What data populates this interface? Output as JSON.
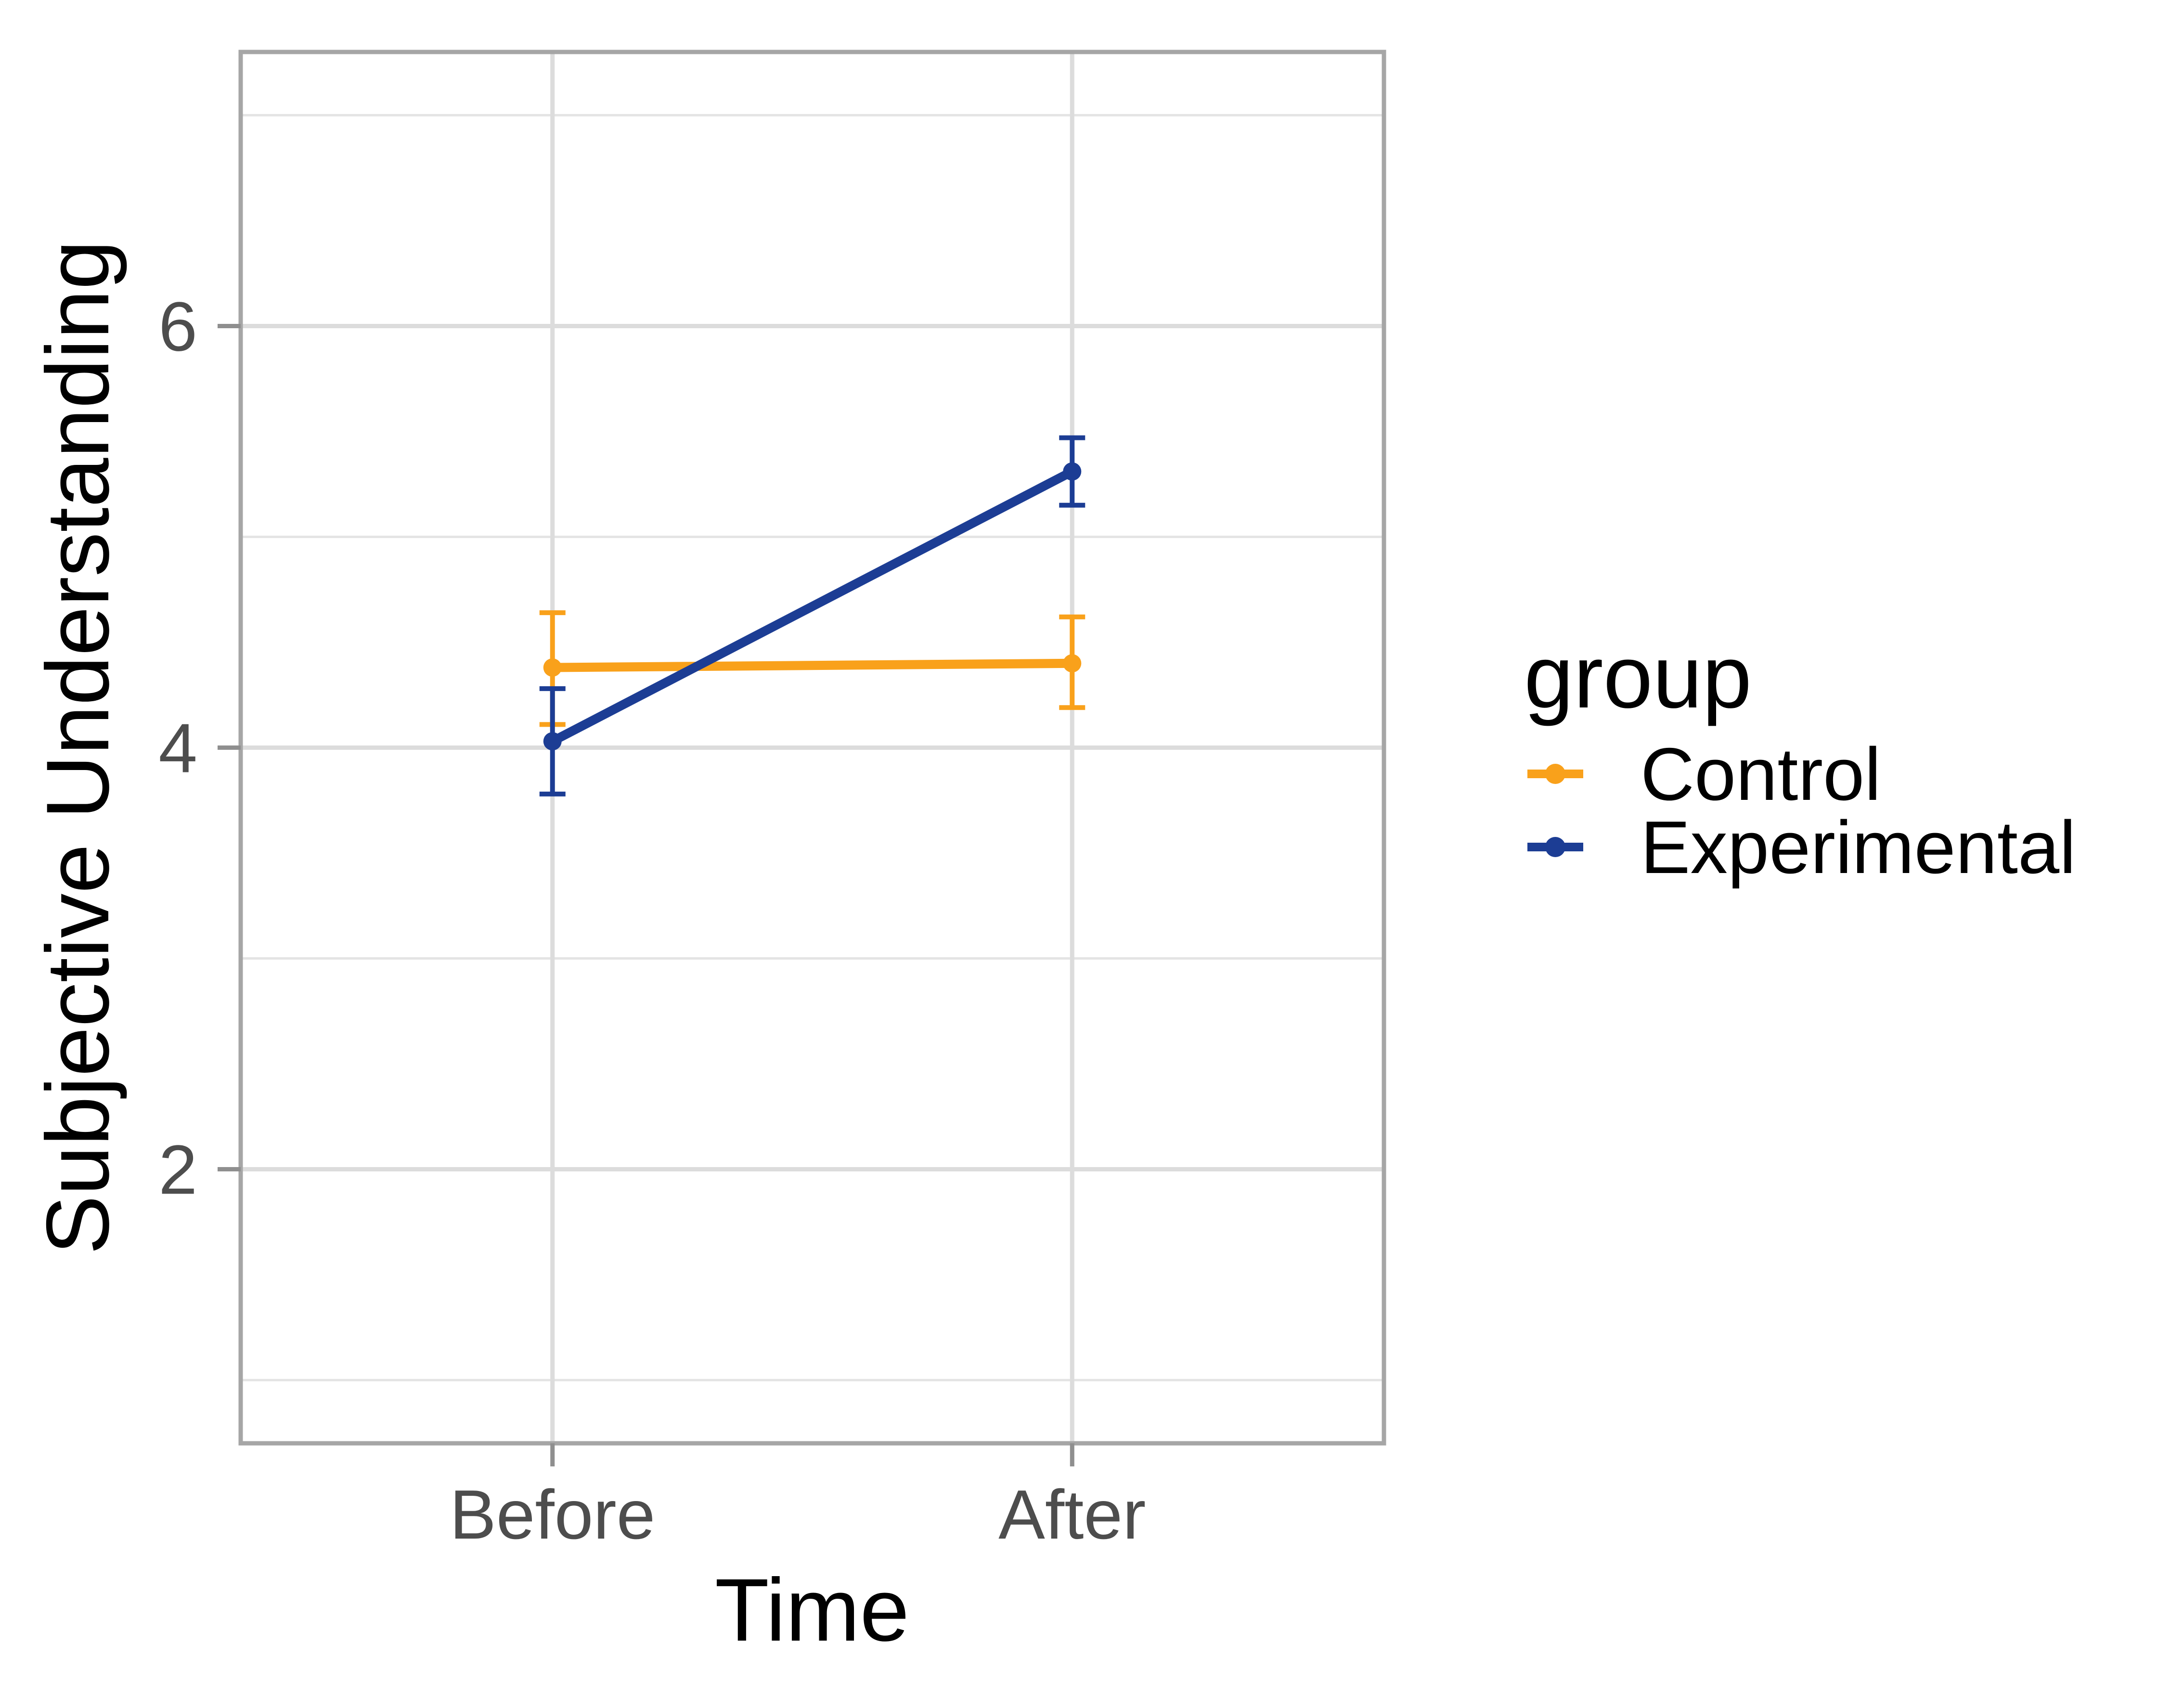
{
  "chart_data": {
    "type": "line",
    "title": "",
    "categories": [
      "Before",
      "After"
    ],
    "series": [
      {
        "name": "Control",
        "color": "#F9A11B",
        "means": [
          4.38,
          4.4
        ],
        "ci_low": [
          4.11,
          4.19
        ],
        "ci_high": [
          4.64,
          4.62
        ]
      },
      {
        "name": "Experimental",
        "color": "#1C3D94",
        "means": [
          4.03,
          5.31
        ],
        "ci_low": [
          3.78,
          5.15
        ],
        "ci_high": [
          4.28,
          5.47
        ]
      }
    ],
    "xlabel": "Time",
    "ylabel": "Subjective Understanding",
    "ylim": [
      0.7,
      7.3
    ],
    "y_major_ticks": [
      2,
      4,
      6
    ],
    "y_minor_gridlines": [
      1,
      3,
      5,
      7
    ],
    "grid": true,
    "legend_title": "group",
    "legend_position": "right",
    "styles": {
      "background": "#FFFFFF",
      "grid_major_color": "#DCDCDC",
      "grid_minor_color": "#E4E4E4",
      "panel_border_color": "#A6A6A6",
      "axis_tick_color": "#8F8F8F",
      "tick_label_color": "#4D4D4D",
      "title_color": "#000000"
    }
  }
}
